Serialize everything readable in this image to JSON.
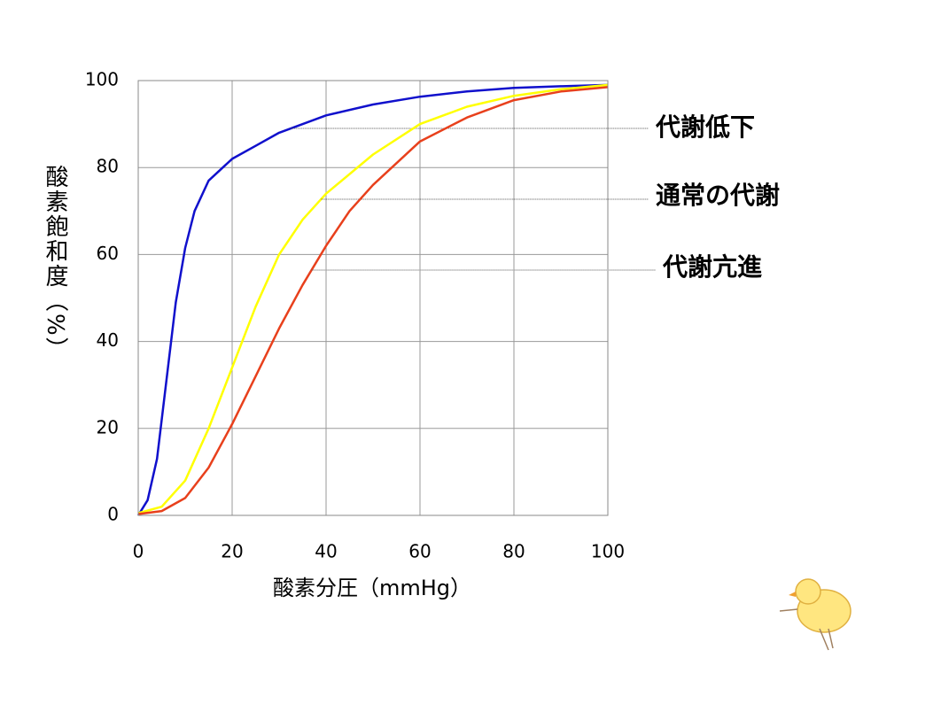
{
  "chart_data": {
    "type": "line",
    "xlabel": "酸素分圧（mmHg）",
    "ylabel": "酸素飽和度（%）",
    "xlim": [
      0,
      100
    ],
    "xticks": [
      0,
      20,
      40,
      60,
      80,
      100
    ],
    "ylim": [
      0,
      100
    ],
    "yticks": [
      0,
      20,
      40,
      60,
      80,
      100
    ],
    "grid": true,
    "series": [
      {
        "name": "代謝低下",
        "color": "#1010cc",
        "label_color": "#3333cc",
        "x": [
          0,
          2,
          4,
          6,
          8,
          10,
          12,
          15,
          20,
          25,
          30,
          40,
          50,
          60,
          70,
          80,
          90,
          100
        ],
        "values": [
          0,
          3.5,
          13,
          31,
          49,
          61.5,
          70,
          77,
          82,
          85,
          88,
          92,
          94.5,
          96.3,
          97.5,
          98.3,
          98.7,
          99
        ]
      },
      {
        "name": "通常の代謝",
        "color": "#ffff00",
        "label_color": "#000000",
        "x": [
          0,
          5,
          10,
          15,
          20,
          25,
          30,
          35,
          40,
          50,
          60,
          70,
          80,
          90,
          100
        ],
        "values": [
          0.5,
          2,
          8,
          20,
          34,
          48,
          60,
          68,
          74,
          83,
          90,
          94,
          96.5,
          98,
          99
        ]
      },
      {
        "name": "代謝亢進",
        "color": "#e8401c",
        "label_color": "#ff0000",
        "x": [
          0,
          5,
          10,
          15,
          20,
          25,
          30,
          35,
          40,
          45,
          50,
          60,
          70,
          80,
          90,
          100
        ],
        "values": [
          0.3,
          1,
          4,
          11,
          21,
          32,
          43,
          53,
          62,
          70,
          76,
          86,
          91.5,
          95.5,
          97.5,
          98.5
        ]
      }
    ]
  }
}
